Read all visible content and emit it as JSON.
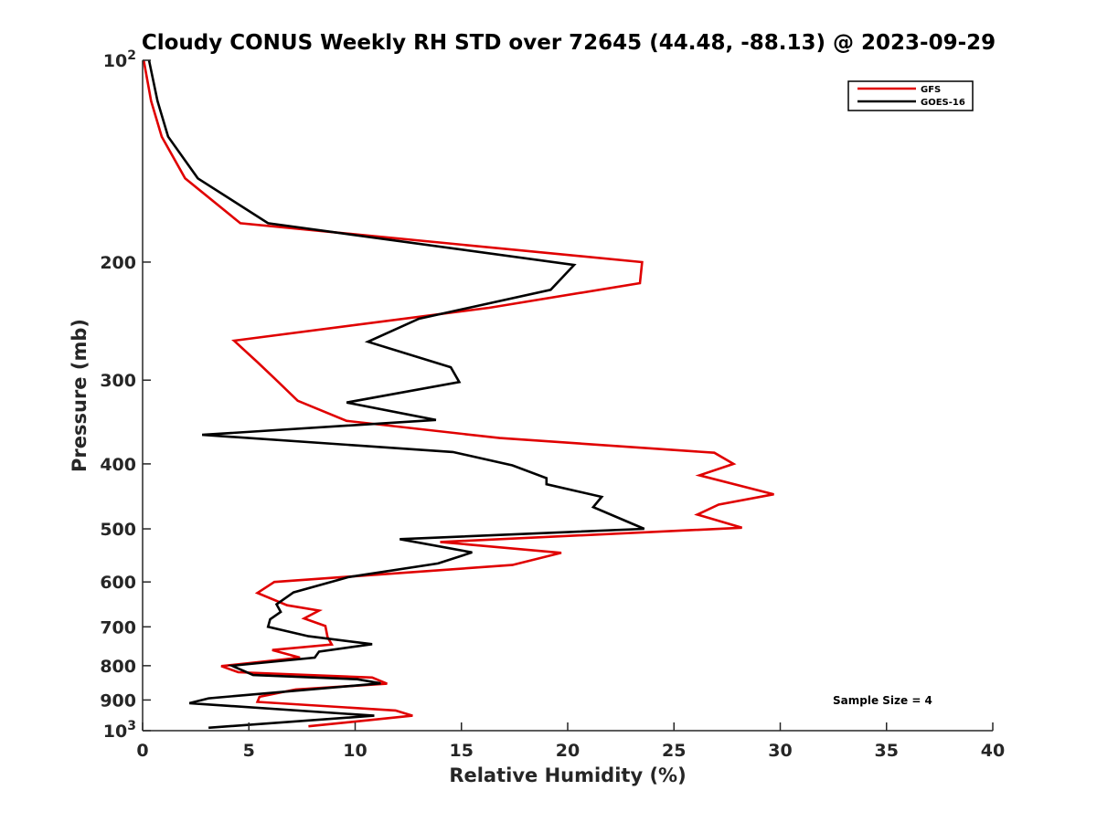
{
  "chart_data": {
    "type": "line",
    "title": "Cloudy CONUS Weekly RH STD over 72645 (44.48, -88.13) @ 2023-09-29",
    "xlabel": "Relative Humidity (%)",
    "ylabel": "Pressure (mb)",
    "xlim": [
      0,
      40
    ],
    "ylim": [
      100,
      1000
    ],
    "y_scale": "log",
    "y_reversed": true,
    "grid": false,
    "legend_placement": "top-right",
    "x_ticks": [
      0,
      5,
      10,
      15,
      20,
      25,
      30,
      35,
      40
    ],
    "x_tick_labels": [
      "0",
      "5",
      "10",
      "15",
      "20",
      "25",
      "30",
      "35",
      "40"
    ],
    "y_ticks": [
      100,
      200,
      300,
      400,
      500,
      600,
      700,
      800,
      900,
      1000
    ],
    "y_tick_labels": [
      {
        "base": "10",
        "sup": "2"
      },
      {
        "base": "200",
        "sup": ""
      },
      {
        "base": "300",
        "sup": ""
      },
      {
        "base": "400",
        "sup": ""
      },
      {
        "base": "500",
        "sup": ""
      },
      {
        "base": "600",
        "sup": ""
      },
      {
        "base": "700",
        "sup": ""
      },
      {
        "base": "800",
        "sup": ""
      },
      {
        "base": "900",
        "sup": ""
      },
      {
        "base": "10",
        "sup": "3"
      }
    ],
    "annotation": "Sample Size = 4",
    "series": [
      {
        "name": "GFS",
        "color": "#e00000",
        "points": [
          [
            0.05,
            100
          ],
          [
            0.4,
            115
          ],
          [
            0.9,
            130
          ],
          [
            2.0,
            150
          ],
          [
            4.6,
            175
          ],
          [
            23.5,
            200
          ],
          [
            23.4,
            215
          ],
          [
            16.3,
            234
          ],
          [
            4.3,
            262
          ],
          [
            5.4,
            282
          ],
          [
            6.2,
            298
          ],
          [
            7.3,
            322
          ],
          [
            9.6,
            345
          ],
          [
            16.8,
            366
          ],
          [
            26.9,
            385
          ],
          [
            27.8,
            400
          ],
          [
            26.2,
            416
          ],
          [
            29.7,
            444
          ],
          [
            27.1,
            460
          ],
          [
            26.1,
            476
          ],
          [
            28.2,
            498
          ],
          [
            14.0,
            523
          ],
          [
            19.7,
            543
          ],
          [
            17.4,
            566
          ],
          [
            6.2,
            600
          ],
          [
            5.4,
            623
          ],
          [
            6.8,
            650
          ],
          [
            8.3,
            662
          ],
          [
            7.6,
            680
          ],
          [
            8.6,
            698
          ],
          [
            8.7,
            725
          ],
          [
            8.9,
            744
          ],
          [
            6.1,
            758
          ],
          [
            7.4,
            778
          ],
          [
            3.7,
            801
          ],
          [
            4.5,
            818
          ],
          [
            10.8,
            833
          ],
          [
            11.5,
            851
          ],
          [
            7.2,
            868
          ],
          [
            5.5,
            890
          ],
          [
            5.4,
            906
          ],
          [
            11.9,
            933
          ],
          [
            12.7,
            950
          ],
          [
            7.8,
            985
          ]
        ]
      },
      {
        "name": "GOES-16",
        "color": "#000000",
        "points": [
          [
            0.3,
            100
          ],
          [
            0.7,
            115
          ],
          [
            1.2,
            130
          ],
          [
            2.6,
            150
          ],
          [
            5.9,
            175
          ],
          [
            20.3,
            202
          ],
          [
            19.2,
            220
          ],
          [
            13.0,
            243
          ],
          [
            10.6,
            263
          ],
          [
            14.5,
            287
          ],
          [
            14.9,
            302
          ],
          [
            9.6,
            324
          ],
          [
            13.8,
            344
          ],
          [
            2.8,
            362
          ],
          [
            14.6,
            384
          ],
          [
            17.4,
            402
          ],
          [
            19.0,
            420
          ],
          [
            19.0,
            429
          ],
          [
            21.6,
            448
          ],
          [
            21.2,
            464
          ],
          [
            23.6,
            500
          ],
          [
            12.1,
            518
          ],
          [
            15.5,
            542
          ],
          [
            13.9,
            563
          ],
          [
            9.7,
            590
          ],
          [
            7.1,
            622
          ],
          [
            6.3,
            648
          ],
          [
            6.5,
            665
          ],
          [
            6.0,
            682
          ],
          [
            5.9,
            700
          ],
          [
            7.8,
            723
          ],
          [
            10.8,
            743
          ],
          [
            8.3,
            762
          ],
          [
            8.1,
            778
          ],
          [
            4.2,
            800
          ],
          [
            5.2,
            826
          ],
          [
            10.1,
            838
          ],
          [
            11.2,
            850
          ],
          [
            3.1,
            895
          ],
          [
            2.2,
            910
          ],
          [
            10.9,
            950
          ],
          [
            3.1,
            990
          ]
        ]
      }
    ]
  }
}
